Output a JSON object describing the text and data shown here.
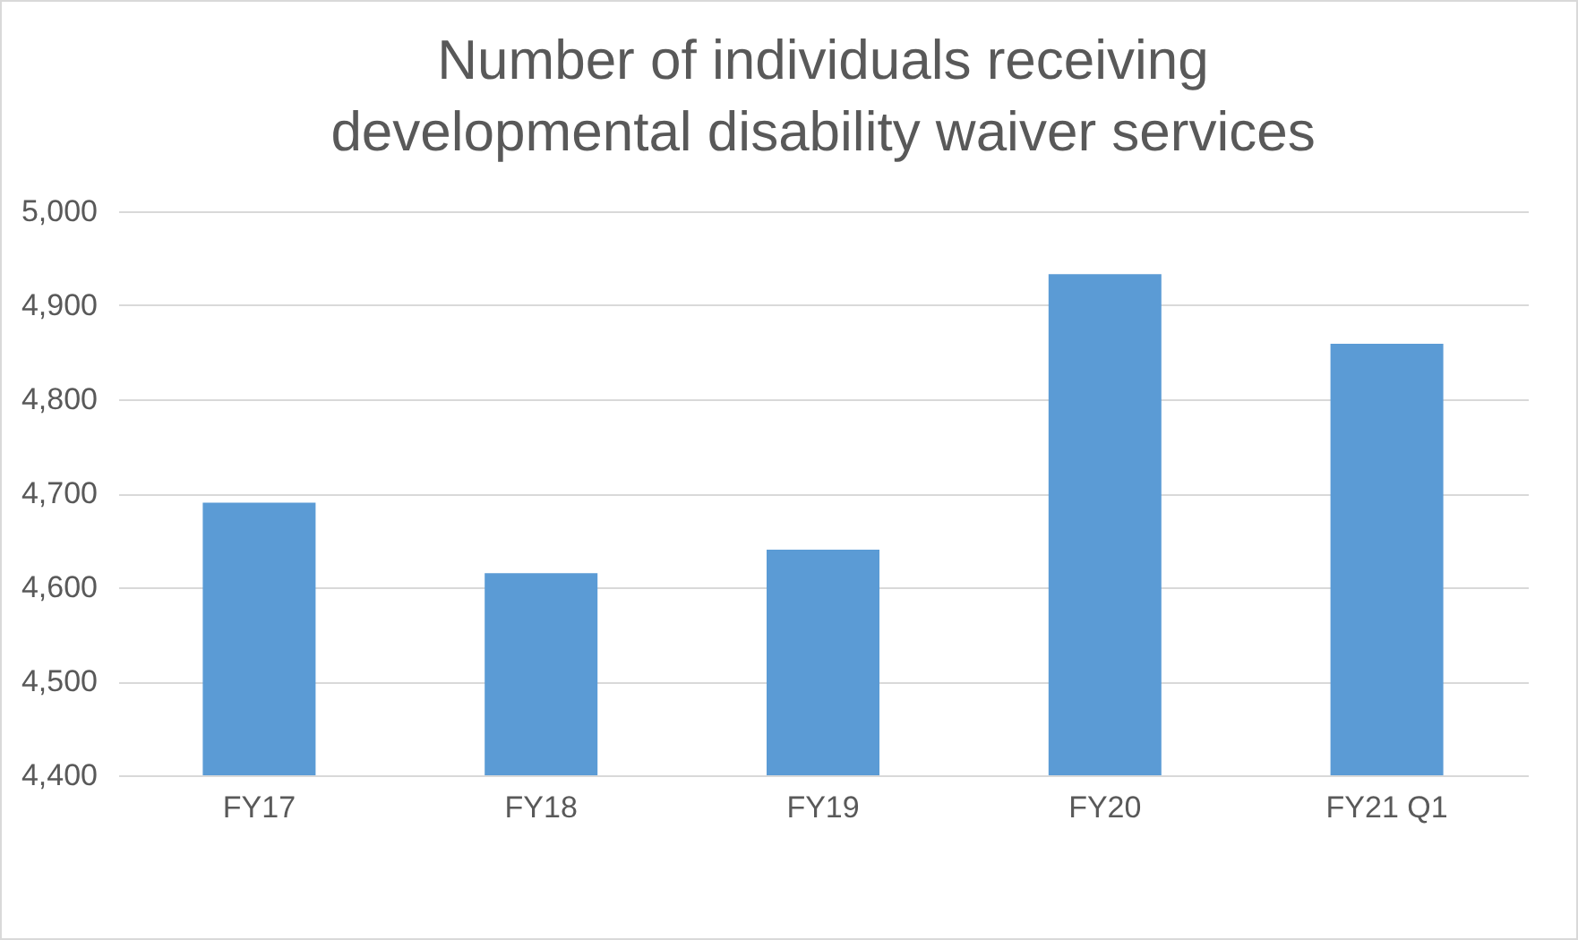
{
  "chart_data": {
    "type": "bar",
    "title": "Number of individuals receiving developmental disability waiver services",
    "categories": [
      "FY17",
      "FY18",
      "FY19",
      "FY20",
      "FY21 Q1"
    ],
    "values": [
      4690,
      4615,
      4640,
      4933,
      4859
    ],
    "color": "#5b9bd5",
    "ylim": [
      4400,
      5000
    ],
    "yticks": [
      {
        "value": 4400,
        "label": "4,400"
      },
      {
        "value": 4500,
        "label": "4,500"
      },
      {
        "value": 4600,
        "label": "4,600"
      },
      {
        "value": 4700,
        "label": "4,700"
      },
      {
        "value": 4800,
        "label": "4,800"
      },
      {
        "value": 4900,
        "label": "4,900"
      },
      {
        "value": 5000,
        "label": "5,000"
      }
    ],
    "grid": true
  }
}
